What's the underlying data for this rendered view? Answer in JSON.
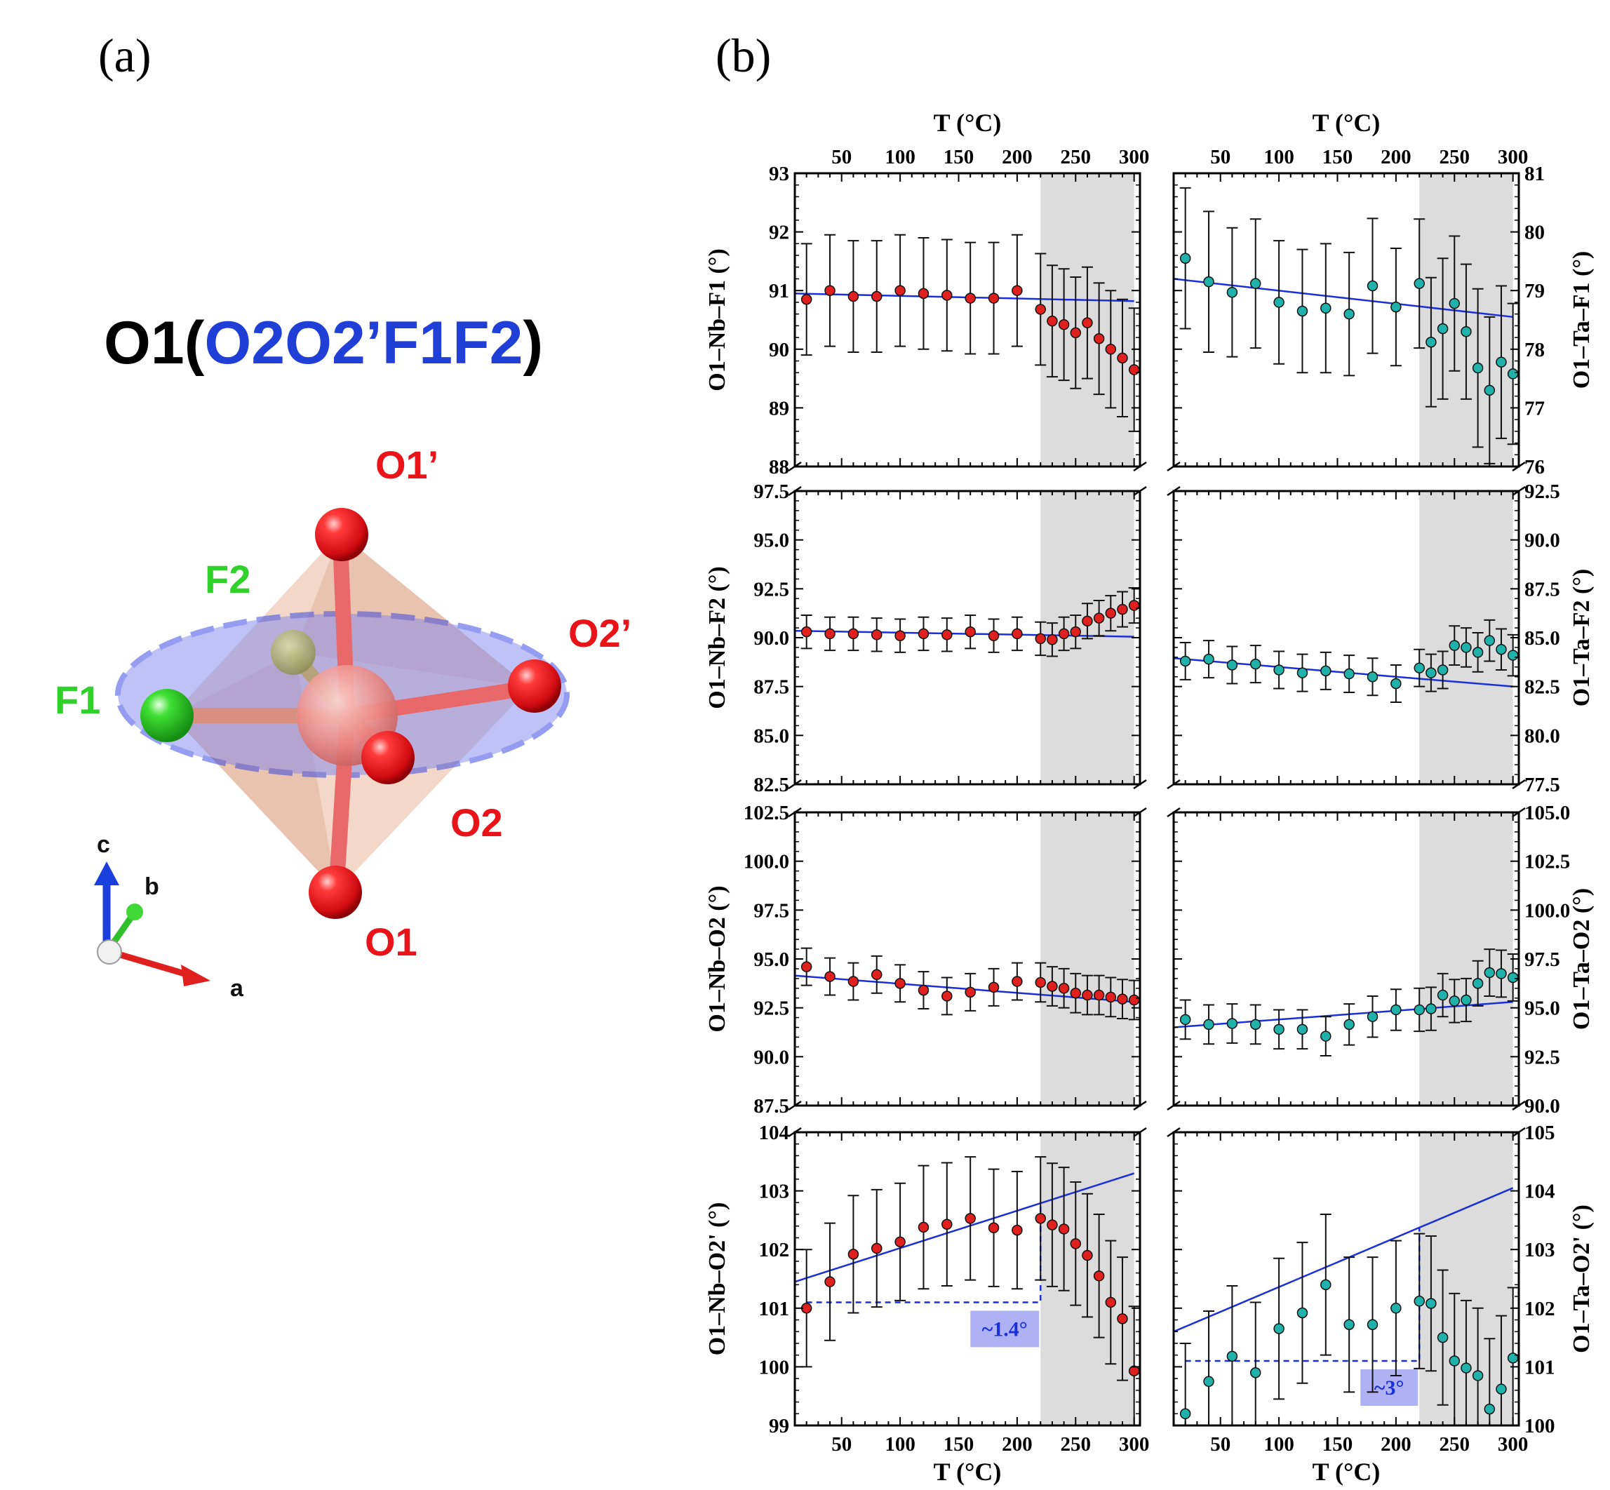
{
  "panel_a": {
    "label": "(a)",
    "title_prefix": "O1(",
    "title_ligands": "O2O2’F1F2",
    "title_suffix": ")",
    "atoms": {
      "o1_prime": "O1’",
      "f2": "F2",
      "o2_prime": "O2’",
      "f1": "F1",
      "o2": "O2",
      "o1": "O1"
    },
    "axes": {
      "c": "c",
      "b": "b",
      "a": "a"
    },
    "colors": {
      "oxygen": "#e8141a",
      "fluorine": "#2fd12a",
      "plane": "#7f86f0",
      "octahedron": "#e9b79d",
      "metal": "#ee8080"
    }
  },
  "panel_b": {
    "label": "(b)",
    "top_axis_title": "T (°C)",
    "bottom_axis_title": "T (°C)"
  },
  "chart_data": [
    {
      "type": "scatter",
      "ylabel": "O1–Nb–F1 (°)",
      "side": "left",
      "row": 0,
      "x": [
        20,
        40,
        60,
        80,
        100,
        120,
        140,
        160,
        180,
        200,
        220,
        230,
        240,
        250,
        260,
        270,
        280,
        290,
        300
      ],
      "y": [
        90.85,
        91.0,
        90.9,
        90.9,
        91.0,
        90.95,
        90.92,
        90.87,
        90.87,
        91.0,
        90.68,
        90.48,
        90.42,
        90.28,
        90.45,
        90.18,
        90.0,
        89.85,
        89.65
      ],
      "err": [
        0.95,
        0.95,
        0.95,
        0.95,
        0.95,
        0.95,
        0.95,
        0.95,
        0.95,
        0.95,
        0.95,
        0.95,
        0.95,
        0.95,
        0.95,
        0.95,
        1.0,
        1.0,
        1.05
      ],
      "ylim": [
        88,
        93
      ],
      "yticks": [
        "88",
        "89",
        "90",
        "91",
        "92",
        "93"
      ],
      "fit": [
        [
          10,
          90.95
        ],
        [
          300,
          90.82
        ]
      ],
      "color": "#e0201e"
    },
    {
      "type": "scatter",
      "ylabel": "O1–Ta–F1 (°)",
      "side": "right",
      "row": 0,
      "x": [
        20,
        40,
        60,
        80,
        100,
        120,
        140,
        160,
        180,
        200,
        220,
        230,
        240,
        250,
        260,
        270,
        280,
        290,
        300
      ],
      "y": [
        79.55,
        79.15,
        78.97,
        79.12,
        78.8,
        78.65,
        78.7,
        78.6,
        79.08,
        78.72,
        79.12,
        78.12,
        78.35,
        78.78,
        78.3,
        77.68,
        77.3,
        77.78,
        77.58
      ],
      "err": [
        1.2,
        1.2,
        1.1,
        1.1,
        1.05,
        1.05,
        1.1,
        1.05,
        1.15,
        1.0,
        1.1,
        1.1,
        1.2,
        1.15,
        1.15,
        1.35,
        1.25,
        1.3,
        1.2
      ],
      "ylim": [
        76,
        81
      ],
      "yticks": [
        "76",
        "77",
        "78",
        "79",
        "80",
        "81"
      ],
      "fit": [
        [
          10,
          79.2
        ],
        [
          300,
          78.55
        ]
      ],
      "color": "#20b2aa"
    },
    {
      "type": "scatter",
      "ylabel": "O1–Nb–F2 (°)",
      "side": "left",
      "row": 1,
      "x": [
        20,
        40,
        60,
        80,
        100,
        120,
        140,
        160,
        180,
        200,
        220,
        230,
        240,
        250,
        260,
        270,
        280,
        290,
        300
      ],
      "y": [
        90.3,
        90.2,
        90.2,
        90.15,
        90.1,
        90.2,
        90.15,
        90.3,
        90.1,
        90.2,
        89.95,
        89.9,
        90.2,
        90.3,
        90.85,
        91.0,
        91.25,
        91.45,
        91.65
      ],
      "err": [
        0.85,
        0.85,
        0.85,
        0.85,
        0.85,
        0.85,
        0.85,
        0.85,
        0.85,
        0.85,
        0.85,
        0.85,
        0.85,
        0.85,
        0.9,
        0.9,
        0.9,
        0.9,
        0.9
      ],
      "ylim": [
        82.5,
        97.5
      ],
      "yticks": [
        "82.5",
        "85.0",
        "87.5",
        "90.0",
        "92.5",
        "95.0",
        "97.5"
      ],
      "fit": [
        [
          10,
          90.35
        ],
        [
          300,
          90.05
        ]
      ],
      "color": "#e0201e"
    },
    {
      "type": "scatter",
      "ylabel": "O1–Ta–F2 (°)",
      "side": "right",
      "row": 1,
      "x": [
        20,
        40,
        60,
        80,
        100,
        120,
        140,
        160,
        180,
        200,
        220,
        230,
        240,
        250,
        260,
        270,
        280,
        290,
        300
      ],
      "y": [
        83.8,
        83.9,
        83.6,
        83.65,
        83.35,
        83.2,
        83.3,
        83.15,
        83.0,
        82.65,
        83.45,
        83.2,
        83.35,
        84.6,
        84.5,
        84.25,
        84.85,
        84.4,
        84.1
      ],
      "err": [
        0.95,
        0.95,
        0.95,
        0.95,
        0.95,
        0.95,
        0.95,
        0.95,
        0.95,
        0.95,
        0.95,
        0.95,
        0.95,
        1.0,
        1.0,
        1.0,
        1.05,
        1.05,
        1.05
      ],
      "ylim": [
        77.5,
        92.5
      ],
      "yticks": [
        "77.5",
        "80.0",
        "82.5",
        "85.0",
        "87.5",
        "90.0",
        "92.5"
      ],
      "fit": [
        [
          10,
          83.95
        ],
        [
          300,
          82.5
        ]
      ],
      "color": "#20b2aa"
    },
    {
      "type": "scatter",
      "ylabel": "O1–Nb–O2 (°)",
      "side": "left",
      "row": 2,
      "x": [
        20,
        40,
        60,
        80,
        100,
        120,
        140,
        160,
        180,
        200,
        220,
        230,
        240,
        250,
        260,
        270,
        280,
        290,
        300
      ],
      "y": [
        94.6,
        94.1,
        93.85,
        94.2,
        93.75,
        93.4,
        93.1,
        93.3,
        93.55,
        93.85,
        93.8,
        93.6,
        93.5,
        93.25,
        93.15,
        93.15,
        93.05,
        92.95,
        92.9
      ],
      "err": [
        0.95,
        0.95,
        0.95,
        0.95,
        0.95,
        0.95,
        0.95,
        0.95,
        0.95,
        0.95,
        1.0,
        1.0,
        1.0,
        1.0,
        1.0,
        1.0,
        1.0,
        1.0,
        1.0
      ],
      "ylim": [
        87.5,
        102.5
      ],
      "yticks": [
        "87.5",
        "90.0",
        "92.5",
        "95.0",
        "97.5",
        "100.0",
        "102.5"
      ],
      "fit": [
        [
          10,
          94.15
        ],
        [
          300,
          92.8
        ]
      ],
      "color": "#e0201e"
    },
    {
      "type": "scatter",
      "ylabel": "O1–Ta–O2 (°)",
      "side": "right",
      "row": 2,
      "x": [
        20,
        40,
        60,
        80,
        100,
        120,
        140,
        160,
        180,
        200,
        220,
        230,
        240,
        250,
        260,
        270,
        280,
        290,
        300
      ],
      "y": [
        94.4,
        94.15,
        94.2,
        94.15,
        93.9,
        93.9,
        93.55,
        94.15,
        94.55,
        94.9,
        94.9,
        94.95,
        95.65,
        95.35,
        95.4,
        96.25,
        96.8,
        96.75,
        96.55
      ],
      "err": [
        1.0,
        1.0,
        1.0,
        1.0,
        1.0,
        1.0,
        1.0,
        1.05,
        1.05,
        1.05,
        1.1,
        1.1,
        1.1,
        1.1,
        1.1,
        1.15,
        1.2,
        1.2,
        1.2
      ],
      "ylim": [
        90.0,
        105.0
      ],
      "yticks": [
        "90.0",
        "92.5",
        "95.0",
        "97.5",
        "100.0",
        "102.5",
        "105.0"
      ],
      "fit": [
        [
          10,
          94.0
        ],
        [
          300,
          95.3
        ]
      ],
      "color": "#20b2aa"
    },
    {
      "type": "scatter",
      "ylabel": "O1–Nb–O2' (°)",
      "side": "left",
      "row": 3,
      "x": [
        20,
        40,
        60,
        80,
        100,
        120,
        140,
        160,
        180,
        200,
        220,
        230,
        240,
        250,
        260,
        270,
        280,
        290,
        300
      ],
      "y": [
        101.0,
        101.45,
        101.92,
        102.02,
        102.13,
        102.38,
        102.43,
        102.53,
        102.37,
        102.33,
        102.53,
        102.42,
        102.35,
        102.1,
        101.9,
        101.55,
        101.1,
        100.82,
        99.93
      ],
      "err": [
        1.0,
        1.0,
        1.0,
        1.0,
        1.0,
        1.05,
        1.05,
        1.05,
        1.0,
        1.0,
        1.05,
        1.05,
        1.05,
        1.05,
        1.05,
        1.05,
        1.05,
        1.05,
        1.1
      ],
      "ylim": [
        99,
        104
      ],
      "yticks": [
        "99",
        "100",
        "101",
        "102",
        "103",
        "104"
      ],
      "fit": [
        [
          10,
          101.45
        ],
        [
          300,
          103.3
        ]
      ],
      "annotation": "~1.4°",
      "dashed_level": 101.1,
      "color": "#e0201e"
    },
    {
      "type": "scatter",
      "ylabel": "O1–Ta–O2' (°)",
      "side": "right",
      "row": 3,
      "x": [
        20,
        40,
        60,
        80,
        100,
        120,
        140,
        160,
        180,
        200,
        220,
        230,
        240,
        250,
        260,
        270,
        280,
        290,
        300
      ],
      "y": [
        100.2,
        100.75,
        101.18,
        100.9,
        101.65,
        101.92,
        102.4,
        101.72,
        101.72,
        102.0,
        102.12,
        102.08,
        101.5,
        101.1,
        100.98,
        100.85,
        100.28,
        100.62,
        101.15
      ],
      "err": [
        1.2,
        1.2,
        1.2,
        1.2,
        1.2,
        1.2,
        1.2,
        1.15,
        1.15,
        1.15,
        1.15,
        1.15,
        1.15,
        1.15,
        1.15,
        1.15,
        1.2,
        1.25,
        1.2
      ],
      "ylim": [
        100,
        105
      ],
      "yticks": [
        "100",
        "101",
        "102",
        "103",
        "104",
        "105"
      ],
      "fit": [
        [
          10,
          101.6
        ],
        [
          300,
          104.05
        ]
      ],
      "annotation": "~3°",
      "dashed_level": 101.1,
      "color": "#20b2aa"
    }
  ],
  "x_axis": {
    "xlim": [
      10,
      305
    ],
    "ticks": [
      "50",
      "100",
      "150",
      "200",
      "250",
      "300"
    ],
    "shaded_range": [
      220,
      300
    ]
  }
}
